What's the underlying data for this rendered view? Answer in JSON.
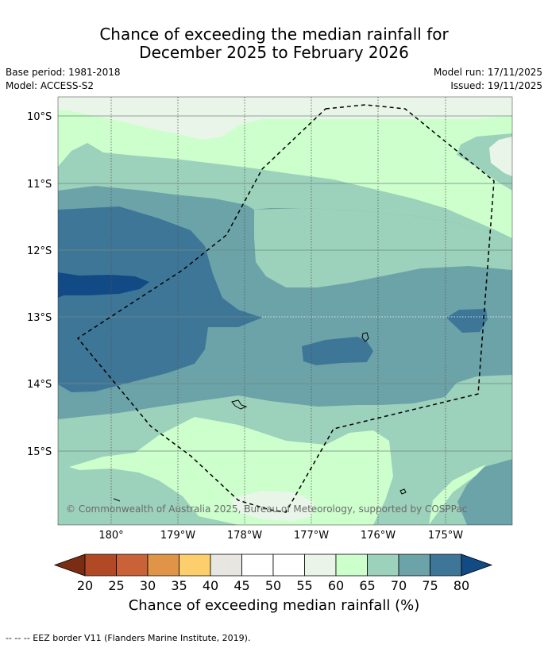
{
  "title": {
    "line1": "Chance of exceeding the median rainfall for",
    "line2": "December 2025 to February 2026"
  },
  "meta": {
    "base_period": "Base period: 1981-2018",
    "model": "Model: ACCESS-S2",
    "model_run": "Model run: 17/11/2025",
    "issued": "Issued: 19/11/2025"
  },
  "map": {
    "lat_labels": [
      "10°S",
      "11°S",
      "12°S",
      "13°S",
      "14°S",
      "15°S"
    ],
    "lon_labels": [
      "180°",
      "179°W",
      "178°W",
      "177°W",
      "176°W",
      "175°W"
    ],
    "copyright": "© Commonwealth of Australia 2025, Bureau of Meteorology, supported by COSPPac"
  },
  "colorbar": {
    "ticks": [
      "20",
      "25",
      "30",
      "35",
      "40",
      "45",
      "50",
      "55",
      "60",
      "65",
      "70",
      "75",
      "80"
    ],
    "colors": [
      "#7a2d12",
      "#b14a24",
      "#c96236",
      "#e09448",
      "#fdcf6c",
      "#e8e6e1",
      "#ffffff",
      "#ffffff",
      "#eaf5e9",
      "#ccffcc",
      "#9cd1bb",
      "#6ba3a8",
      "#3e7698",
      "#114a85"
    ],
    "label": "Chance of exceeding median rainfall (%)"
  },
  "legend": {
    "eez_border": "--  --  -- EEZ border V11 (Flanders Marine Institute, 2019)."
  }
}
